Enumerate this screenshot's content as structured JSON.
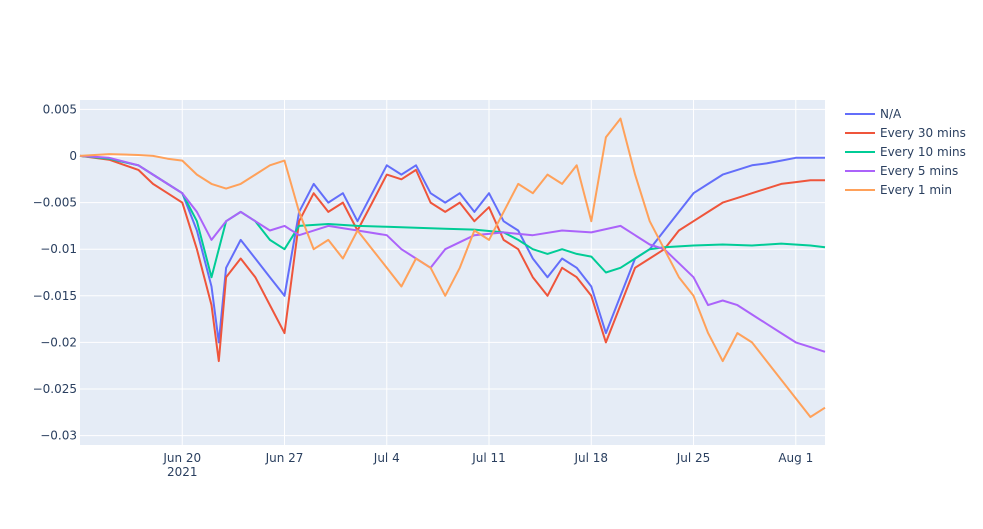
{
  "chart_data": {
    "type": "line",
    "title": "",
    "xlabel": "",
    "ylabel": "",
    "x_range": [
      "2021-06-13",
      "2021-08-03"
    ],
    "ylim": [
      -0.031,
      0.006
    ],
    "x_ticks": [
      {
        "date": "2021-06-20",
        "label": "Jun 20",
        "sublabel": "2021"
      },
      {
        "date": "2021-06-27",
        "label": "Jun 27",
        "sublabel": ""
      },
      {
        "date": "2021-07-04",
        "label": "Jul 4",
        "sublabel": ""
      },
      {
        "date": "2021-07-11",
        "label": "Jul 11",
        "sublabel": ""
      },
      {
        "date": "2021-07-18",
        "label": "Jul 18",
        "sublabel": ""
      },
      {
        "date": "2021-07-25",
        "label": "Jul 25",
        "sublabel": ""
      },
      {
        "date": "2021-08-01",
        "label": "Aug 1",
        "sublabel": ""
      }
    ],
    "y_ticks": [
      {
        "value": 0.005,
        "label": "0.005"
      },
      {
        "value": 0,
        "label": "0"
      },
      {
        "value": -0.005,
        "label": "−0.005"
      },
      {
        "value": -0.01,
        "label": "−0.01"
      },
      {
        "value": -0.015,
        "label": "−0.015"
      },
      {
        "value": -0.02,
        "label": "−0.02"
      },
      {
        "value": -0.025,
        "label": "−0.025"
      },
      {
        "value": -0.03,
        "label": "−0.03"
      }
    ],
    "grid": true,
    "legend_position": "right",
    "plot_bg": "#e5ecf6",
    "series": [
      {
        "name": "N/A",
        "color": "#636efa",
        "x": [
          "2021-06-13",
          "2021-06-15",
          "2021-06-17",
          "2021-06-18",
          "2021-06-19",
          "2021-06-20",
          "2021-06-21",
          "2021-06-22",
          "2021-06-22T12:00",
          "2021-06-23",
          "2021-06-24",
          "2021-06-25",
          "2021-06-26",
          "2021-06-27",
          "2021-06-28",
          "2021-06-29",
          "2021-06-30",
          "2021-07-01",
          "2021-07-02",
          "2021-07-03",
          "2021-07-04",
          "2021-07-05",
          "2021-07-06",
          "2021-07-07",
          "2021-07-08",
          "2021-07-09",
          "2021-07-10",
          "2021-07-11",
          "2021-07-12",
          "2021-07-13",
          "2021-07-14",
          "2021-07-15",
          "2021-07-16",
          "2021-07-17",
          "2021-07-18",
          "2021-07-19",
          "2021-07-20",
          "2021-07-21",
          "2021-07-22",
          "2021-07-23",
          "2021-07-24",
          "2021-07-25",
          "2021-07-26",
          "2021-07-27",
          "2021-07-28",
          "2021-07-29",
          "2021-07-30",
          "2021-07-31",
          "2021-08-01",
          "2021-08-02",
          "2021-08-03"
        ],
        "y": [
          0,
          -0.0003,
          -0.001,
          -0.002,
          -0.003,
          -0.004,
          -0.008,
          -0.014,
          -0.02,
          -0.012,
          -0.009,
          -0.011,
          -0.013,
          -0.015,
          -0.006,
          -0.003,
          -0.005,
          -0.004,
          -0.007,
          -0.004,
          -0.001,
          -0.002,
          -0.001,
          -0.004,
          -0.005,
          -0.004,
          -0.006,
          -0.004,
          -0.007,
          -0.008,
          -0.011,
          -0.013,
          -0.011,
          -0.012,
          -0.014,
          -0.019,
          -0.015,
          -0.011,
          -0.01,
          -0.008,
          -0.006,
          -0.004,
          -0.003,
          -0.002,
          -0.0015,
          -0.001,
          -0.0008,
          -0.0005,
          -0.0002,
          -0.0002,
          -0.0002
        ]
      },
      {
        "name": "Every 30 mins",
        "color": "#ef553b",
        "x": [
          "2021-06-13",
          "2021-06-15",
          "2021-06-17",
          "2021-06-18",
          "2021-06-19",
          "2021-06-20",
          "2021-06-21",
          "2021-06-22",
          "2021-06-22T12:00",
          "2021-06-23",
          "2021-06-24",
          "2021-06-25",
          "2021-06-26",
          "2021-06-27",
          "2021-06-28",
          "2021-06-29",
          "2021-06-30",
          "2021-07-01",
          "2021-07-02",
          "2021-07-03",
          "2021-07-04",
          "2021-07-05",
          "2021-07-06",
          "2021-07-07",
          "2021-07-08",
          "2021-07-09",
          "2021-07-10",
          "2021-07-11",
          "2021-07-12",
          "2021-07-13",
          "2021-07-14",
          "2021-07-15",
          "2021-07-16",
          "2021-07-17",
          "2021-07-18",
          "2021-07-19",
          "2021-07-20",
          "2021-07-21",
          "2021-07-22",
          "2021-07-23",
          "2021-07-24",
          "2021-07-25",
          "2021-07-26",
          "2021-07-27",
          "2021-07-28",
          "2021-07-29",
          "2021-07-30",
          "2021-07-31",
          "2021-08-01",
          "2021-08-02",
          "2021-08-03"
        ],
        "y": [
          0,
          -0.0004,
          -0.0015,
          -0.003,
          -0.004,
          -0.005,
          -0.01,
          -0.016,
          -0.022,
          -0.013,
          -0.011,
          -0.013,
          -0.016,
          -0.019,
          -0.007,
          -0.004,
          -0.006,
          -0.005,
          -0.008,
          -0.005,
          -0.002,
          -0.0025,
          -0.0015,
          -0.005,
          -0.006,
          -0.005,
          -0.007,
          -0.0055,
          -0.009,
          -0.01,
          -0.013,
          -0.015,
          -0.012,
          -0.013,
          -0.015,
          -0.02,
          -0.016,
          -0.012,
          -0.011,
          -0.01,
          -0.008,
          -0.007,
          -0.006,
          -0.005,
          -0.0045,
          -0.004,
          -0.0035,
          -0.003,
          -0.0028,
          -0.0026,
          -0.0026
        ]
      },
      {
        "name": "Every 10 mins",
        "color": "#00cc96",
        "x": [
          "2021-06-13",
          "2021-06-15",
          "2021-06-17",
          "2021-06-18",
          "2021-06-19",
          "2021-06-20",
          "2021-06-21",
          "2021-06-22",
          "2021-06-23",
          "2021-06-24",
          "2021-06-25",
          "2021-06-26",
          "2021-06-27",
          "2021-06-28",
          "2021-06-30",
          "2021-07-02",
          "2021-07-04",
          "2021-07-06",
          "2021-07-08",
          "2021-07-10",
          "2021-07-12",
          "2021-07-13",
          "2021-07-14",
          "2021-07-15",
          "2021-07-16",
          "2021-07-17",
          "2021-07-18",
          "2021-07-19",
          "2021-07-20",
          "2021-07-21",
          "2021-07-22",
          "2021-07-23",
          "2021-07-25",
          "2021-07-27",
          "2021-07-29",
          "2021-07-31",
          "2021-08-02",
          "2021-08-03"
        ],
        "y": [
          0,
          -0.0003,
          -0.001,
          -0.002,
          -0.003,
          -0.004,
          -0.007,
          -0.013,
          -0.007,
          -0.006,
          -0.007,
          -0.009,
          -0.01,
          -0.0075,
          -0.0073,
          -0.0075,
          -0.0076,
          -0.0077,
          -0.0078,
          -0.0079,
          -0.0082,
          -0.009,
          -0.01,
          -0.0105,
          -0.01,
          -0.0105,
          -0.0108,
          -0.0125,
          -0.012,
          -0.011,
          -0.01,
          -0.0098,
          -0.0096,
          -0.0095,
          -0.0096,
          -0.0094,
          -0.0096,
          -0.0098
        ]
      },
      {
        "name": "Every 5 mins",
        "color": "#ab63fa",
        "x": [
          "2021-06-13",
          "2021-06-15",
          "2021-06-17",
          "2021-06-18",
          "2021-06-19",
          "2021-06-20",
          "2021-06-21",
          "2021-06-22",
          "2021-06-23",
          "2021-06-24",
          "2021-06-25",
          "2021-06-26",
          "2021-06-27",
          "2021-06-28",
          "2021-06-30",
          "2021-07-02",
          "2021-07-04",
          "2021-07-05",
          "2021-07-06",
          "2021-07-07",
          "2021-07-08",
          "2021-07-10",
          "2021-07-12",
          "2021-07-14",
          "2021-07-16",
          "2021-07-18",
          "2021-07-20",
          "2021-07-21",
          "2021-07-22",
          "2021-07-23",
          "2021-07-24",
          "2021-07-25",
          "2021-07-26",
          "2021-07-27",
          "2021-07-28",
          "2021-07-29",
          "2021-07-30",
          "2021-07-31",
          "2021-08-01",
          "2021-08-02",
          "2021-08-03"
        ],
        "y": [
          0,
          -0.0002,
          -0.001,
          -0.002,
          -0.003,
          -0.004,
          -0.006,
          -0.009,
          -0.007,
          -0.006,
          -0.007,
          -0.008,
          -0.0075,
          -0.0085,
          -0.0075,
          -0.008,
          -0.0085,
          -0.01,
          -0.011,
          -0.012,
          -0.01,
          -0.0085,
          -0.0082,
          -0.0085,
          -0.008,
          -0.0082,
          -0.0075,
          -0.0085,
          -0.0095,
          -0.01,
          -0.0115,
          -0.013,
          -0.016,
          -0.0155,
          -0.016,
          -0.017,
          -0.018,
          -0.019,
          -0.02,
          -0.0205,
          -0.021
        ]
      },
      {
        "name": "Every 1 min",
        "color": "#ffa15a",
        "x": [
          "2021-06-13",
          "2021-06-15",
          "2021-06-17",
          "2021-06-18",
          "2021-06-19",
          "2021-06-20",
          "2021-06-21",
          "2021-06-22",
          "2021-06-23",
          "2021-06-24",
          "2021-06-25",
          "2021-06-26",
          "2021-06-27",
          "2021-06-28",
          "2021-06-29",
          "2021-06-30",
          "2021-07-01",
          "2021-07-02",
          "2021-07-03",
          "2021-07-04",
          "2021-07-05",
          "2021-07-06",
          "2021-07-07",
          "2021-07-08",
          "2021-07-09",
          "2021-07-10",
          "2021-07-11",
          "2021-07-12",
          "2021-07-13",
          "2021-07-14",
          "2021-07-15",
          "2021-07-16",
          "2021-07-17",
          "2021-07-18",
          "2021-07-19",
          "2021-07-20",
          "2021-07-21",
          "2021-07-22",
          "2021-07-23",
          "2021-07-24",
          "2021-07-25",
          "2021-07-26",
          "2021-07-27",
          "2021-07-28",
          "2021-07-29",
          "2021-07-30",
          "2021-07-31",
          "2021-08-01",
          "2021-08-02",
          "2021-08-03"
        ],
        "y": [
          0,
          0.0002,
          0.0001,
          0,
          -0.0003,
          -0.0005,
          -0.002,
          -0.003,
          -0.0035,
          -0.003,
          -0.002,
          -0.001,
          -0.0005,
          -0.006,
          -0.01,
          -0.009,
          -0.011,
          -0.008,
          -0.01,
          -0.012,
          -0.014,
          -0.011,
          -0.012,
          -0.015,
          -0.012,
          -0.008,
          -0.009,
          -0.006,
          -0.003,
          -0.004,
          -0.002,
          -0.003,
          -0.001,
          -0.007,
          0.002,
          0.004,
          -0.002,
          -0.007,
          -0.01,
          -0.013,
          -0.015,
          -0.019,
          -0.022,
          -0.019,
          -0.02,
          -0.022,
          -0.024,
          -0.026,
          -0.028,
          -0.027
        ]
      }
    ]
  }
}
